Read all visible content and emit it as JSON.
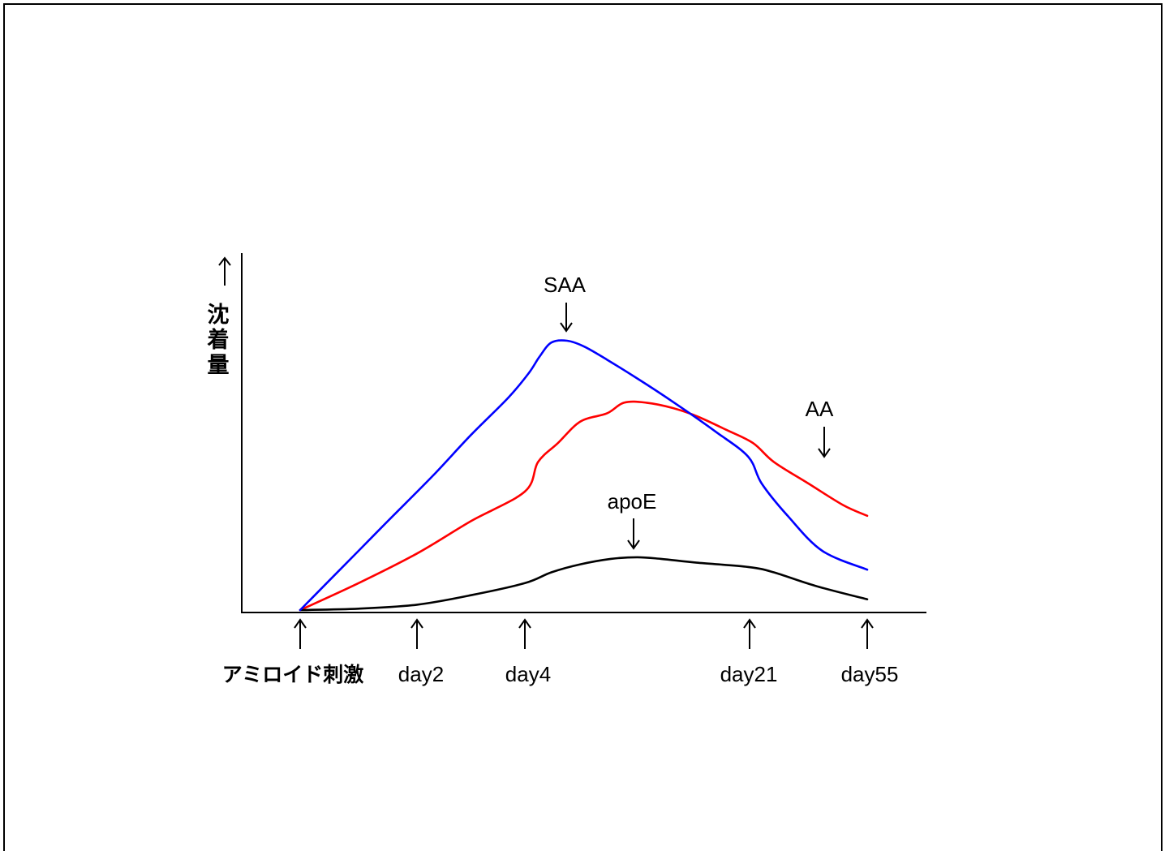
{
  "chart_data": {
    "type": "line",
    "ylabel": "沈着量",
    "x_markers": [
      {
        "label": "アミロイド刺激",
        "day": 0
      },
      {
        "label": "day2",
        "day": 2
      },
      {
        "label": "day4",
        "day": 4
      },
      {
        "label": "day21",
        "day": 21
      },
      {
        "label": "day55",
        "day": 55
      }
    ],
    "series": [
      {
        "name": "SAA",
        "color": "#0000ff",
        "annotation_pointer": "down",
        "points": [
          [
            0.0,
            0.0
          ],
          [
            1.0,
            0.22
          ],
          [
            1.5,
            0.33
          ],
          [
            2.3,
            0.5
          ],
          [
            3.0,
            0.65
          ],
          [
            3.7,
            0.79
          ],
          [
            4.3,
            0.88
          ],
          [
            5.1,
            0.94
          ],
          [
            6.0,
            0.993
          ],
          [
            7.2,
            1.0
          ],
          [
            8.5,
            0.978
          ],
          [
            10.2,
            0.93
          ],
          [
            12.5,
            0.86
          ],
          [
            15.3,
            0.77
          ],
          [
            18.5,
            0.66
          ],
          [
            20.9,
            0.569
          ],
          [
            24.5,
            0.47
          ],
          [
            32.0,
            0.35
          ],
          [
            42.0,
            0.22
          ],
          [
            55.0,
            0.15
          ]
        ]
      },
      {
        "name": "AA",
        "color": "#ff0000",
        "annotation_pointer": "down",
        "points": [
          [
            0.0,
            0.0
          ],
          [
            1.0,
            0.1
          ],
          [
            2.0,
            0.21
          ],
          [
            3.0,
            0.33
          ],
          [
            4.0,
            0.44
          ],
          [
            5.0,
            0.55
          ],
          [
            6.5,
            0.62
          ],
          [
            8.2,
            0.7
          ],
          [
            10.2,
            0.73
          ],
          [
            11.5,
            0.77
          ],
          [
            13.2,
            0.77
          ],
          [
            15.2,
            0.75
          ],
          [
            17.0,
            0.72
          ],
          [
            19.2,
            0.67
          ],
          [
            22.0,
            0.62
          ],
          [
            28.0,
            0.55
          ],
          [
            38.0,
            0.47
          ],
          [
            48.0,
            0.39
          ],
          [
            55.0,
            0.35
          ]
        ]
      },
      {
        "name": "apoE",
        "color": "#000000",
        "annotation_pointer": "down",
        "points": [
          [
            0.0,
            0.0
          ],
          [
            1.0,
            0.005
          ],
          [
            2.0,
            0.02
          ],
          [
            3.0,
            0.055
          ],
          [
            4.0,
            0.1
          ],
          [
            6.0,
            0.14
          ],
          [
            8.2,
            0.17
          ],
          [
            10.5,
            0.19
          ],
          [
            12.5,
            0.196
          ],
          [
            14.3,
            0.19
          ],
          [
            17.0,
            0.176
          ],
          [
            20.9,
            0.16
          ],
          [
            28.0,
            0.14
          ],
          [
            40.0,
            0.09
          ],
          [
            55.0,
            0.04
          ]
        ]
      }
    ]
  }
}
